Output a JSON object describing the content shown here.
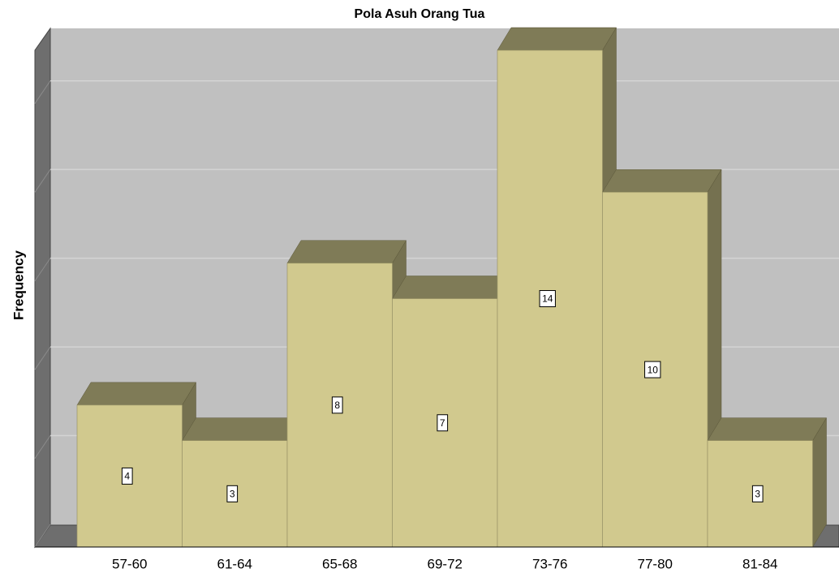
{
  "chart_data": {
    "type": "bar3d",
    "title": "Pola Asuh Orang Tua",
    "y_label": "Frequency",
    "categories": [
      "57-60",
      "61-64",
      "65-68",
      "69-72",
      "73-76",
      "77-80",
      "81-84"
    ],
    "values": [
      4,
      3,
      8,
      7,
      14,
      10,
      3
    ],
    "color": "#d1c98e",
    "ylim": [
      0,
      14.8
    ],
    "yticks": [
      0,
      2.5,
      5,
      7.5,
      10,
      12.5
    ],
    "grid": true
  }
}
